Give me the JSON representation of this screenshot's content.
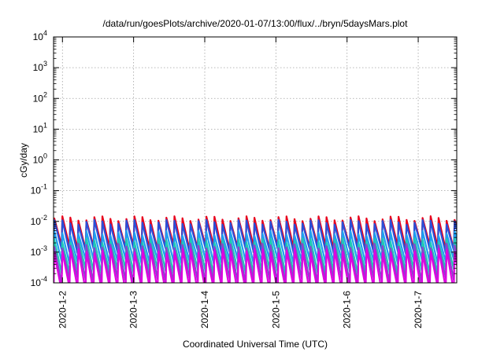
{
  "chart_data": {
    "type": "line",
    "title": "/data/run/goesPlots/archive/2020-01-07/13:00/flux/../bryn/5daysMars.plot",
    "xlabel": "Coordinated Universal Time (UTC)",
    "ylabel": "cGy/day",
    "yscale": "log",
    "ylim": [
      0.0001,
      10000
    ],
    "xlim": [
      "2020-01-01 21:00",
      "2020-01-07 13:00"
    ],
    "grid": true,
    "ytick_labels": [
      {
        "base": "10",
        "exp": "-4"
      },
      {
        "base": "10",
        "exp": "-3"
      },
      {
        "base": "10",
        "exp": "-2"
      },
      {
        "base": "10",
        "exp": "-1"
      },
      {
        "base": "10",
        "exp": "0"
      },
      {
        "base": "10",
        "exp": "1"
      },
      {
        "base": "10",
        "exp": "2"
      },
      {
        "base": "10",
        "exp": "3"
      },
      {
        "base": "10",
        "exp": "4"
      }
    ],
    "xtick_labels": [
      "2020-1-2",
      "2020-1-3",
      "2020-1-4",
      "2020-1-5",
      "2020-1-6",
      "2020-1-7"
    ],
    "cycle_hours": 2.7,
    "series": [
      {
        "color": "#e8001c",
        "peak": 0.0125,
        "trough": 0.0014
      },
      {
        "color": "#2a4fd8",
        "peak": 0.0095,
        "trough": 0.0011
      },
      {
        "color": "#1fa0f0",
        "peak": 0.0042,
        "trough": 0.0005
      },
      {
        "color": "#20c8b4",
        "peak": 0.0024,
        "trough": 0.00024
      },
      {
        "color": "#8a44cc",
        "peak": 0.0016,
        "trough": 0.00012
      },
      {
        "color": "#e000e0",
        "peak": 0.0011,
        "trough": 6e-05
      }
    ]
  }
}
